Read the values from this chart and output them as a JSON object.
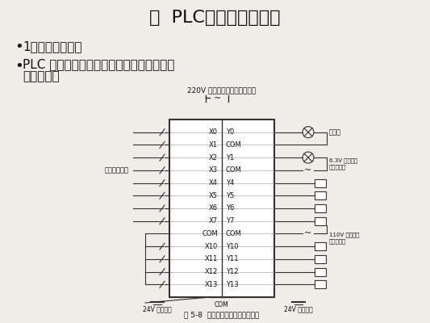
{
  "title": "二  PLC基础及应用部分",
  "bullet1": "1、基础知识内容",
  "bullet2": "PLC 硬件组成、外部接线、工作原理（程序\n执行过程）",
  "diagram_title": "220V 可编程序控制器工作电源",
  "fig_caption": "图 5-8  可编程序控制器外部接线图",
  "label_input_signal": "输入开关信号",
  "label_24v_dc_left": "24V 直流电源",
  "label_24v_dc_right": "24V 直流电源",
  "label_indicator": "指示灯",
  "label_63v": "6.3V 交流电源\n接触器线圈",
  "label_110v": "110V 交流电源\n电磁阀线圈",
  "left_pins": [
    "X0",
    "X1",
    "X2",
    "X3",
    "X4",
    "X5",
    "X6",
    "X7",
    "COM",
    "X10",
    "X11",
    "X12",
    "X13"
  ],
  "right_pins": [
    "Y0",
    "COM",
    "Y1",
    "COM",
    "Y4",
    "Y5",
    "Y6",
    "Y7",
    "COM",
    "Y10",
    "Y11",
    "Y12",
    "Y13"
  ],
  "bg_color": "#f0ede8",
  "box_color": "#333333",
  "line_color": "#333333",
  "text_color": "#111111"
}
